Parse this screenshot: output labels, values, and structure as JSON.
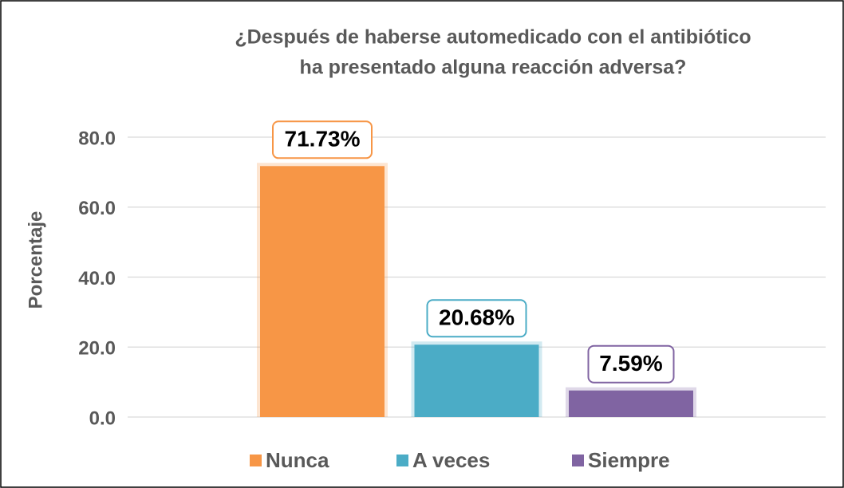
{
  "chart_data": {
    "type": "bar",
    "title": [
      "¿Después de haberse automedicado con el antibiótico",
      "ha presentado alguna reacción adversa?"
    ],
    "y_label": "Porcentaje",
    "categories": [
      null
    ],
    "series": [
      {
        "name": "Nunca",
        "color": "#f79646",
        "values": [
          71.73
        ],
        "value_labels": [
          "71.73%"
        ]
      },
      {
        "name": "A veces",
        "color": "#4bacc6",
        "values": [
          20.68
        ],
        "value_labels": [
          "20.68%"
        ]
      },
      {
        "name": "Siempre",
        "color": "#8064a2",
        "values": [
          7.59
        ],
        "value_labels": [
          "7.59%"
        ]
      }
    ],
    "ylim": [
      0,
      80
    ],
    "yticks": [
      {
        "value": 0,
        "label": "0.0"
      },
      {
        "value": 20,
        "label": "20.0"
      },
      {
        "value": 40,
        "label": "40.0"
      },
      {
        "value": 60,
        "label": "60.0"
      },
      {
        "value": 80,
        "label": "80.0"
      }
    ],
    "grid": true,
    "legend": "bottom"
  }
}
